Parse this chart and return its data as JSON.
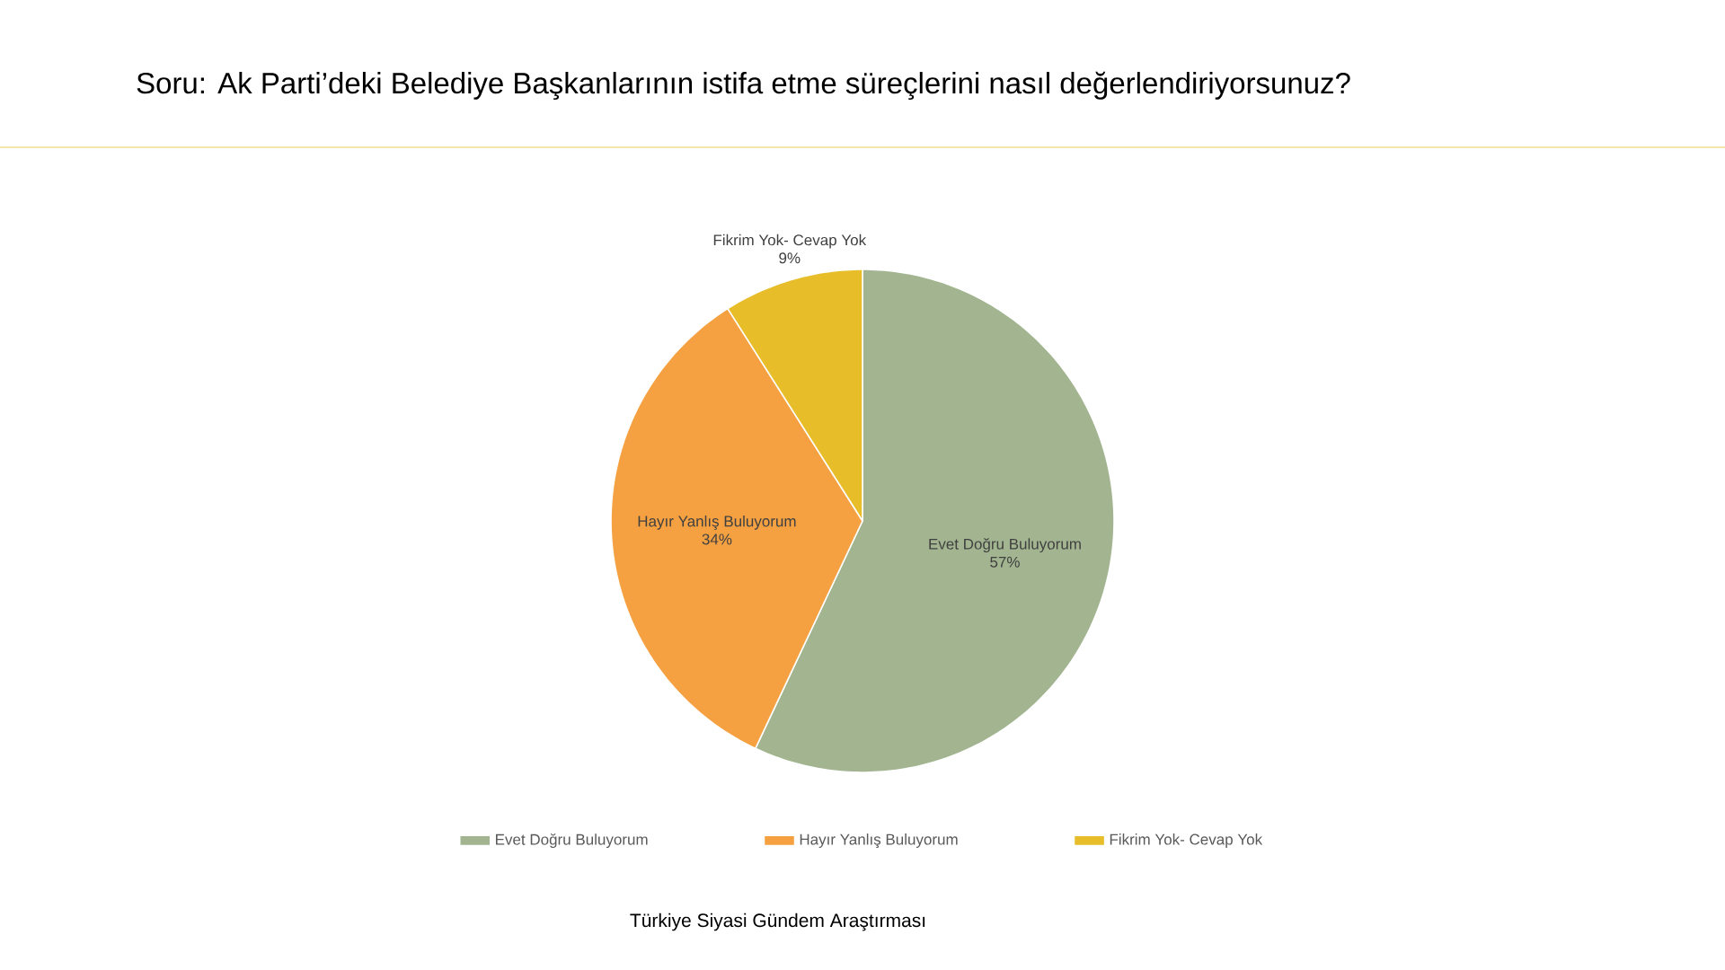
{
  "chart_data": {
    "type": "pie",
    "title": "Soru: Ak Parti’deki Belediye Başkanlarının istifa etme süreçlerini nasıl değerlendiriyorsunuz?",
    "categories": [
      "Evet Doğru Buluyorum",
      "Hayır Yanlış Buluyorum",
      "Fikrim Yok- Cevap Yok"
    ],
    "values": [
      57,
      34,
      9
    ],
    "colors": [
      "#a2b590",
      "#f5a142",
      "#e8bd2a"
    ],
    "value_labels": [
      "57%",
      "34%",
      "9%"
    ],
    "legend": "bottom",
    "annotations": [
      "Türkiye Siyasi Gündem Araştırması"
    ]
  }
}
